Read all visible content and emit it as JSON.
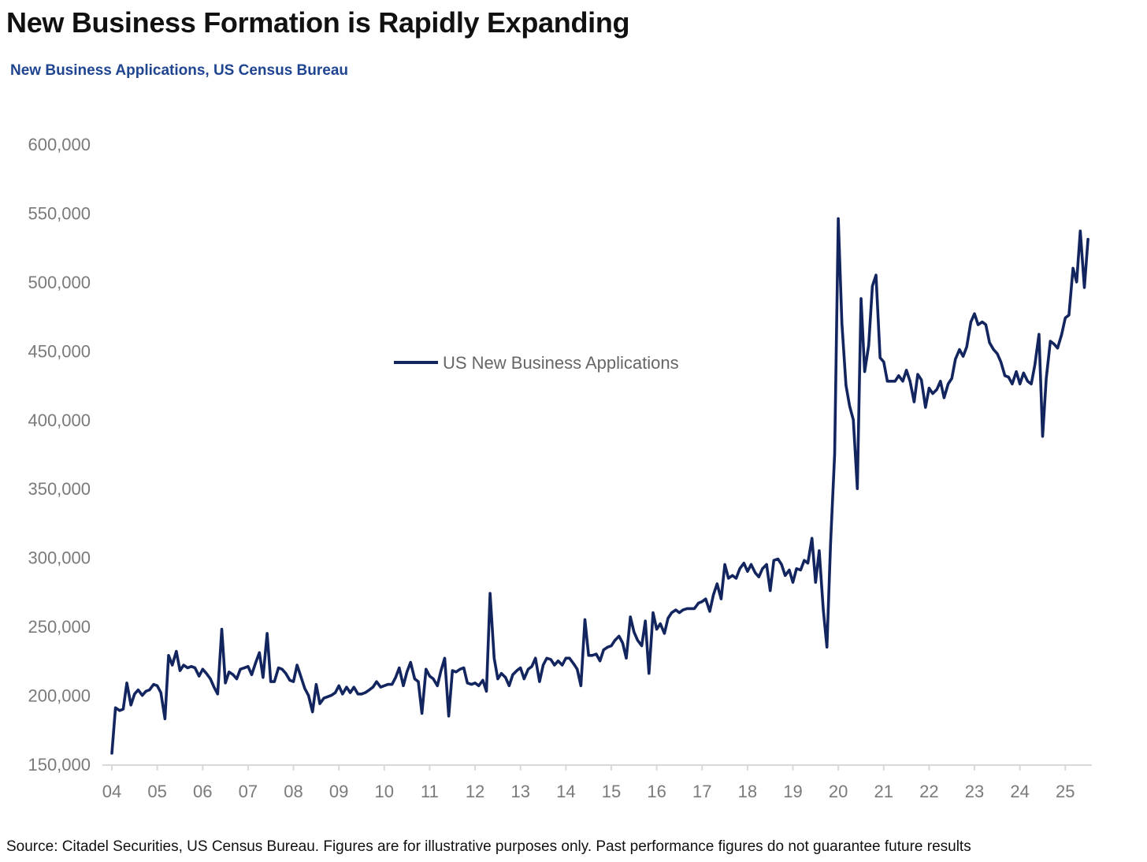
{
  "header": {
    "title": "New Business Formation is Rapidly Expanding",
    "subtitle": "New Business Applications, US Census Bureau"
  },
  "footer": {
    "source": "Source: Citadel Securities, US Census Bureau. Figures are for illustrative purposes only. Past performance figures do not guarantee future results"
  },
  "colors": {
    "series": "#13255f",
    "title": "#111111",
    "subtitle": "#1f4591",
    "tick": "#7a7a7a",
    "axis": "#d9d9d9"
  },
  "chart_data": {
    "type": "line",
    "title": "New Business Formation is Rapidly Expanding",
    "subtitle": "New Business Applications, US Census Bureau",
    "xlabel": "",
    "ylabel": "",
    "xlim": [
      2004.0,
      2025.55
    ],
    "ylim": [
      150000,
      600000
    ],
    "grid": false,
    "legend_position": "center",
    "yticks": [
      150000,
      200000,
      250000,
      300000,
      350000,
      400000,
      450000,
      500000,
      550000,
      600000
    ],
    "ytick_labels": [
      "150,000",
      "200,000",
      "250,000",
      "300,000",
      "350,000",
      "400,000",
      "450,000",
      "500,000",
      "550,000",
      "600,000"
    ],
    "xticks": [
      2004,
      2005,
      2006,
      2007,
      2008,
      2009,
      2010,
      2011,
      2012,
      2013,
      2014,
      2015,
      2016,
      2017,
      2018,
      2019,
      2020,
      2021,
      2022,
      2023,
      2024,
      2025
    ],
    "xtick_labels": [
      "04",
      "05",
      "06",
      "07",
      "08",
      "09",
      "10",
      "11",
      "12",
      "13",
      "14",
      "15",
      "16",
      "17",
      "18",
      "19",
      "20",
      "21",
      "22",
      "23",
      "24",
      "25"
    ],
    "series": [
      {
        "name": "US New Business Applications",
        "points": [
          [
            2004.0,
            158000
          ],
          [
            2004.08,
            191000
          ],
          [
            2004.17,
            189000
          ],
          [
            2004.25,
            190000
          ],
          [
            2004.33,
            209000
          ],
          [
            2004.42,
            193000
          ],
          [
            2004.5,
            201000
          ],
          [
            2004.58,
            204000
          ],
          [
            2004.67,
            200000
          ],
          [
            2004.75,
            203000
          ],
          [
            2004.83,
            204000
          ],
          [
            2004.92,
            208000
          ],
          [
            2005.0,
            207000
          ],
          [
            2005.08,
            202000
          ],
          [
            2005.17,
            183000
          ],
          [
            2005.25,
            229000
          ],
          [
            2005.33,
            222000
          ],
          [
            2005.42,
            232000
          ],
          [
            2005.5,
            218000
          ],
          [
            2005.58,
            222000
          ],
          [
            2005.67,
            220000
          ],
          [
            2005.75,
            221000
          ],
          [
            2005.83,
            220000
          ],
          [
            2005.92,
            214000
          ],
          [
            2006.0,
            219000
          ],
          [
            2006.08,
            216000
          ],
          [
            2006.17,
            212000
          ],
          [
            2006.25,
            206000
          ],
          [
            2006.33,
            201000
          ],
          [
            2006.42,
            248000
          ],
          [
            2006.5,
            209000
          ],
          [
            2006.58,
            217000
          ],
          [
            2006.67,
            215000
          ],
          [
            2006.75,
            212000
          ],
          [
            2006.83,
            219000
          ],
          [
            2006.92,
            220000
          ],
          [
            2007.0,
            221000
          ],
          [
            2007.08,
            215000
          ],
          [
            2007.17,
            224000
          ],
          [
            2007.25,
            231000
          ],
          [
            2007.33,
            213000
          ],
          [
            2007.42,
            245000
          ],
          [
            2007.5,
            210000
          ],
          [
            2007.58,
            210000
          ],
          [
            2007.67,
            220000
          ],
          [
            2007.75,
            219000
          ],
          [
            2007.83,
            216000
          ],
          [
            2007.92,
            211000
          ],
          [
            2008.0,
            210000
          ],
          [
            2008.08,
            222000
          ],
          [
            2008.17,
            213000
          ],
          [
            2008.25,
            205000
          ],
          [
            2008.33,
            200000
          ],
          [
            2008.42,
            188000
          ],
          [
            2008.5,
            208000
          ],
          [
            2008.58,
            194000
          ],
          [
            2008.67,
            198000
          ],
          [
            2008.75,
            199000
          ],
          [
            2008.83,
            200000
          ],
          [
            2008.92,
            202000
          ],
          [
            2009.0,
            207000
          ],
          [
            2009.08,
            201000
          ],
          [
            2009.17,
            206000
          ],
          [
            2009.25,
            202000
          ],
          [
            2009.33,
            206000
          ],
          [
            2009.42,
            201000
          ],
          [
            2009.5,
            201000
          ],
          [
            2009.58,
            202000
          ],
          [
            2009.67,
            204000
          ],
          [
            2009.75,
            206000
          ],
          [
            2009.83,
            210000
          ],
          [
            2009.92,
            206000
          ],
          [
            2010.0,
            207000
          ],
          [
            2010.08,
            208000
          ],
          [
            2010.17,
            208000
          ],
          [
            2010.25,
            213000
          ],
          [
            2010.33,
            220000
          ],
          [
            2010.42,
            207000
          ],
          [
            2010.5,
            217000
          ],
          [
            2010.58,
            224000
          ],
          [
            2010.67,
            212000
          ],
          [
            2010.75,
            210000
          ],
          [
            2010.83,
            187000
          ],
          [
            2010.92,
            219000
          ],
          [
            2011.0,
            214000
          ],
          [
            2011.08,
            212000
          ],
          [
            2011.17,
            207000
          ],
          [
            2011.25,
            218000
          ],
          [
            2011.33,
            227000
          ],
          [
            2011.42,
            185000
          ],
          [
            2011.5,
            218000
          ],
          [
            2011.58,
            217000
          ],
          [
            2011.67,
            219000
          ],
          [
            2011.75,
            220000
          ],
          [
            2011.83,
            209000
          ],
          [
            2011.92,
            208000
          ],
          [
            2012.0,
            209000
          ],
          [
            2012.08,
            207000
          ],
          [
            2012.17,
            211000
          ],
          [
            2012.25,
            203000
          ],
          [
            2012.33,
            274000
          ],
          [
            2012.42,
            227000
          ],
          [
            2012.5,
            212000
          ],
          [
            2012.58,
            216000
          ],
          [
            2012.67,
            213000
          ],
          [
            2012.75,
            207000
          ],
          [
            2012.83,
            215000
          ],
          [
            2012.92,
            218000
          ],
          [
            2013.0,
            220000
          ],
          [
            2013.08,
            212000
          ],
          [
            2013.17,
            219000
          ],
          [
            2013.25,
            221000
          ],
          [
            2013.33,
            227000
          ],
          [
            2013.42,
            210000
          ],
          [
            2013.5,
            222000
          ],
          [
            2013.58,
            227000
          ],
          [
            2013.67,
            226000
          ],
          [
            2013.75,
            222000
          ],
          [
            2013.83,
            225000
          ],
          [
            2013.92,
            222000
          ],
          [
            2014.0,
            227000
          ],
          [
            2014.08,
            227000
          ],
          [
            2014.17,
            223000
          ],
          [
            2014.25,
            219000
          ],
          [
            2014.33,
            207000
          ],
          [
            2014.42,
            255000
          ],
          [
            2014.5,
            229000
          ],
          [
            2014.58,
            229000
          ],
          [
            2014.67,
            230000
          ],
          [
            2014.75,
            225000
          ],
          [
            2014.83,
            233000
          ],
          [
            2014.92,
            235000
          ],
          [
            2015.0,
            236000
          ],
          [
            2015.08,
            240000
          ],
          [
            2015.17,
            243000
          ],
          [
            2015.25,
            238000
          ],
          [
            2015.33,
            227000
          ],
          [
            2015.42,
            257000
          ],
          [
            2015.5,
            246000
          ],
          [
            2015.58,
            240000
          ],
          [
            2015.67,
            236000
          ],
          [
            2015.75,
            254000
          ],
          [
            2015.83,
            216000
          ],
          [
            2015.92,
            260000
          ],
          [
            2016.0,
            248000
          ],
          [
            2016.08,
            252000
          ],
          [
            2016.17,
            245000
          ],
          [
            2016.25,
            256000
          ],
          [
            2016.33,
            260000
          ],
          [
            2016.42,
            262000
          ],
          [
            2016.5,
            260000
          ],
          [
            2016.58,
            262000
          ],
          [
            2016.67,
            263000
          ],
          [
            2016.75,
            263000
          ],
          [
            2016.83,
            263000
          ],
          [
            2016.92,
            267000
          ],
          [
            2017.0,
            268000
          ],
          [
            2017.08,
            270000
          ],
          [
            2017.17,
            261000
          ],
          [
            2017.25,
            273000
          ],
          [
            2017.33,
            281000
          ],
          [
            2017.42,
            270000
          ],
          [
            2017.5,
            295000
          ],
          [
            2017.58,
            285000
          ],
          [
            2017.67,
            287000
          ],
          [
            2017.75,
            285000
          ],
          [
            2017.83,
            292000
          ],
          [
            2017.92,
            296000
          ],
          [
            2018.0,
            290000
          ],
          [
            2018.08,
            295000
          ],
          [
            2018.17,
            289000
          ],
          [
            2018.25,
            286000
          ],
          [
            2018.33,
            292000
          ],
          [
            2018.42,
            295000
          ],
          [
            2018.5,
            276000
          ],
          [
            2018.58,
            298000
          ],
          [
            2018.67,
            299000
          ],
          [
            2018.75,
            295000
          ],
          [
            2018.83,
            287000
          ],
          [
            2018.92,
            291000
          ],
          [
            2019.0,
            282000
          ],
          [
            2019.08,
            292000
          ],
          [
            2019.17,
            291000
          ],
          [
            2019.25,
            298000
          ],
          [
            2019.33,
            296000
          ],
          [
            2019.42,
            314000
          ],
          [
            2019.5,
            282000
          ],
          [
            2019.58,
            305000
          ],
          [
            2019.67,
            262000
          ],
          [
            2019.75,
            235000
          ],
          [
            2019.83,
            310000
          ],
          [
            2019.92,
            375000
          ],
          [
            2020.0,
            546000
          ],
          [
            2020.08,
            470000
          ],
          [
            2020.17,
            425000
          ],
          [
            2020.25,
            410000
          ],
          [
            2020.33,
            400000
          ],
          [
            2020.42,
            350000
          ],
          [
            2020.5,
            488000
          ],
          [
            2020.58,
            435000
          ],
          [
            2020.67,
            454000
          ],
          [
            2020.75,
            497000
          ],
          [
            2020.83,
            505000
          ],
          [
            2020.92,
            445000
          ],
          [
            2021.0,
            442000
          ],
          [
            2021.08,
            428000
          ],
          [
            2021.17,
            428000
          ],
          [
            2021.25,
            428000
          ],
          [
            2021.33,
            432000
          ],
          [
            2021.42,
            428000
          ],
          [
            2021.5,
            436000
          ],
          [
            2021.58,
            428000
          ],
          [
            2021.67,
            413000
          ],
          [
            2021.75,
            433000
          ],
          [
            2021.83,
            429000
          ],
          [
            2021.92,
            409000
          ],
          [
            2022.0,
            423000
          ],
          [
            2022.08,
            419000
          ],
          [
            2022.17,
            422000
          ],
          [
            2022.25,
            428000
          ],
          [
            2022.33,
            416000
          ],
          [
            2022.42,
            426000
          ],
          [
            2022.5,
            430000
          ],
          [
            2022.58,
            444000
          ],
          [
            2022.67,
            451000
          ],
          [
            2022.75,
            446000
          ],
          [
            2022.83,
            453000
          ],
          [
            2022.92,
            471000
          ],
          [
            2023.0,
            477000
          ],
          [
            2023.08,
            469000
          ],
          [
            2023.17,
            471000
          ],
          [
            2023.25,
            469000
          ],
          [
            2023.33,
            456000
          ],
          [
            2023.42,
            451000
          ],
          [
            2023.5,
            448000
          ],
          [
            2023.58,
            442000
          ],
          [
            2023.67,
            432000
          ],
          [
            2023.75,
            431000
          ],
          [
            2023.83,
            426000
          ],
          [
            2023.92,
            435000
          ],
          [
            2024.0,
            426000
          ],
          [
            2024.08,
            434000
          ],
          [
            2024.17,
            428000
          ],
          [
            2024.25,
            426000
          ],
          [
            2024.33,
            440000
          ],
          [
            2024.42,
            462000
          ],
          [
            2024.5,
            388000
          ],
          [
            2024.58,
            430000
          ],
          [
            2024.67,
            457000
          ],
          [
            2024.75,
            455000
          ],
          [
            2024.83,
            452000
          ],
          [
            2024.92,
            462000
          ],
          [
            2025.0,
            474000
          ],
          [
            2025.08,
            476000
          ],
          [
            2025.17,
            510000
          ],
          [
            2025.25,
            500000
          ],
          [
            2025.33,
            537000
          ],
          [
            2025.42,
            496000
          ],
          [
            2025.5,
            531000
          ]
        ]
      }
    ]
  }
}
